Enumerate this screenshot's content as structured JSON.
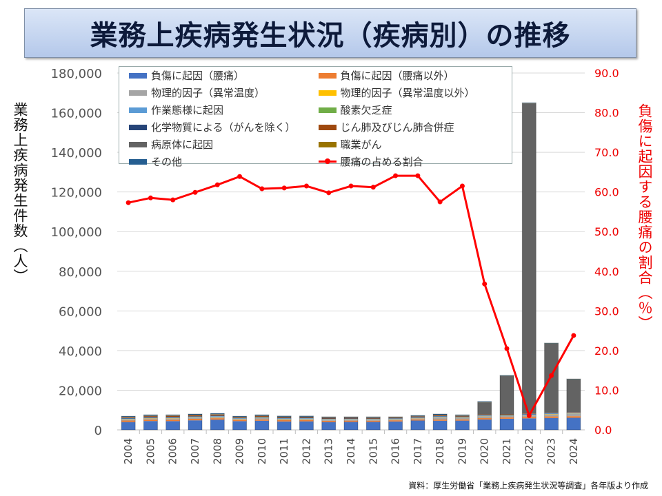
{
  "title": "業務上疾病発生状況（疾病別）の推移",
  "source": "資料：厚生労働省「業務上疾病発生状況等調査」各年版より作成",
  "chart_data": {
    "type": "bar",
    "stacked": true,
    "title": "業務上疾病発生状況（疾病別）の推移",
    "ylabel": "業務上疾病発生件数（人）",
    "y2label": "負傷に起因する腰痛の割合（％）",
    "ylim": [
      0,
      180000
    ],
    "y2lim": [
      0,
      90
    ],
    "yticks": [
      "0",
      "20,000",
      "40,000",
      "60,000",
      "80,000",
      "100,000",
      "120,000",
      "140,000",
      "160,000",
      "180,000"
    ],
    "y2ticks": [
      "0.0",
      "10.0",
      "20.0",
      "30.0",
      "40.0",
      "50.0",
      "60.0",
      "70.0",
      "80.0",
      "90.0"
    ],
    "grid": true,
    "legend_position": "top-left",
    "categories": [
      "2004",
      "2005",
      "2006",
      "2007",
      "2008",
      "2009",
      "2010",
      "2011",
      "2012",
      "2013",
      "2014",
      "2015",
      "2016",
      "2017",
      "2018",
      "2019",
      "2020",
      "2021",
      "2022",
      "2023",
      "2024"
    ],
    "series": [
      {
        "name": "負傷に起因（腰痛）",
        "color": "#4472C4",
        "values": [
          3950,
          4450,
          4400,
          4800,
          5150,
          4400,
          4600,
          4250,
          4300,
          3950,
          4050,
          4050,
          4250,
          4700,
          4600,
          4650,
          5250,
          5600,
          5800,
          6000,
          6100
        ]
      },
      {
        "name": "負傷に起因（腰痛以外）",
        "color": "#ED7D31",
        "values": [
          740,
          720,
          700,
          750,
          720,
          600,
          640,
          620,
          600,
          620,
          600,
          580,
          570,
          580,
          600,
          620,
          650,
          700,
          750,
          760,
          800
        ]
      },
      {
        "name": "物理的因子（異常温度）",
        "color": "#A5A5A5",
        "values": [
          590,
          560,
          700,
          600,
          620,
          450,
          720,
          550,
          550,
          540,
          520,
          480,
          470,
          570,
          1200,
          830,
          1000,
          650,
          850,
          1100,
          1200
        ]
      },
      {
        "name": "物理的因子（異常温度以外）",
        "color": "#FFC000",
        "values": [
          150,
          140,
          140,
          150,
          160,
          130,
          150,
          140,
          150,
          140,
          140,
          130,
          130,
          130,
          140,
          140,
          140,
          140,
          150,
          150,
          150
        ]
      },
      {
        "name": "作業態様に起因",
        "color": "#5B9BD5",
        "values": [
          300,
          310,
          300,
          320,
          300,
          260,
          280,
          270,
          270,
          260,
          250,
          250,
          240,
          250,
          260,
          260,
          270,
          270,
          280,
          300,
          300
        ]
      },
      {
        "name": "酸素欠乏症",
        "color": "#70AD47",
        "values": [
          10,
          10,
          10,
          10,
          10,
          10,
          10,
          10,
          10,
          10,
          10,
          10,
          10,
          10,
          10,
          10,
          10,
          10,
          10,
          10,
          10
        ]
      },
      {
        "name": "化学物質による（がんを除く）",
        "color": "#264478",
        "values": [
          240,
          230,
          230,
          220,
          230,
          200,
          220,
          220,
          210,
          200,
          190,
          200,
          190,
          190,
          200,
          220,
          220,
          220,
          230,
          220,
          220
        ]
      },
      {
        "name": "じん肺及びじん肺合併症",
        "color": "#9E480E",
        "values": [
          350,
          490,
          560,
          500,
          490,
          320,
          330,
          360,
          320,
          330,
          300,
          320,
          250,
          300,
          290,
          260,
          250,
          230,
          210,
          220,
          200
        ]
      },
      {
        "name": "病原体に起因",
        "color": "#636363",
        "values": [
          150,
          180,
          150,
          200,
          200,
          150,
          180,
          170,
          180,
          190,
          200,
          200,
          200,
          230,
          260,
          240,
          6050,
          19340,
          156400,
          34750,
          16450
        ]
      },
      {
        "name": "職業がん",
        "color": "#997300",
        "values": [
          90,
          110,
          90,
          80,
          90,
          80,
          80,
          80,
          80,
          80,
          70,
          80,
          70,
          80,
          70,
          80,
          80,
          80,
          80,
          80,
          80
        ]
      },
      {
        "name": "その他",
        "color": "#255E91",
        "values": [
          330,
          400,
          320,
          370,
          330,
          300,
          390,
          330,
          330,
          280,
          270,
          300,
          220,
          260,
          370,
          290,
          380,
          260,
          240,
          210,
          190
        ]
      }
    ],
    "line": {
      "name": "腰痛の占める割合",
      "color": "#FF0000",
      "axis": "right",
      "values": [
        57.3,
        58.5,
        58.0,
        59.9,
        61.8,
        63.9,
        60.8,
        61.0,
        61.5,
        59.8,
        61.5,
        61.2,
        64.1,
        64.1,
        57.5,
        61.5,
        36.8,
        20.5,
        3.6,
        13.7,
        23.8
      ]
    }
  }
}
